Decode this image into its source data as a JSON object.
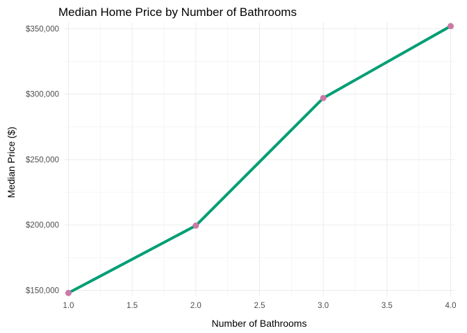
{
  "chart_data": {
    "type": "line",
    "title": "Median Home Price by Number of Bathrooms",
    "xlabel": "Number of Bathrooms",
    "ylabel": "Median Price ($)",
    "x": [
      1.0,
      2.0,
      3.0,
      4.0
    ],
    "series": [
      {
        "values": [
          148000,
          199500,
          297000,
          352000
        ]
      }
    ],
    "xlim": [
      0.97,
      4.03
    ],
    "ylim": [
      145500,
      355000
    ],
    "x_ticks": [
      1.0,
      1.5,
      2.0,
      2.5,
      3.0,
      3.5,
      4.0
    ],
    "x_tick_labels": [
      "1.0",
      "1.5",
      "2.0",
      "2.5",
      "3.0",
      "3.5",
      "4.0"
    ],
    "y_ticks": [
      150000,
      200000,
      250000,
      300000,
      350000
    ],
    "y_tick_labels": [
      "$150,000",
      "$200,000",
      "$250,000",
      "$300,000",
      "$350,000"
    ],
    "grid": true,
    "legend": "none",
    "colors": {
      "line": "#009E73",
      "point": "#CC79A7"
    }
  }
}
